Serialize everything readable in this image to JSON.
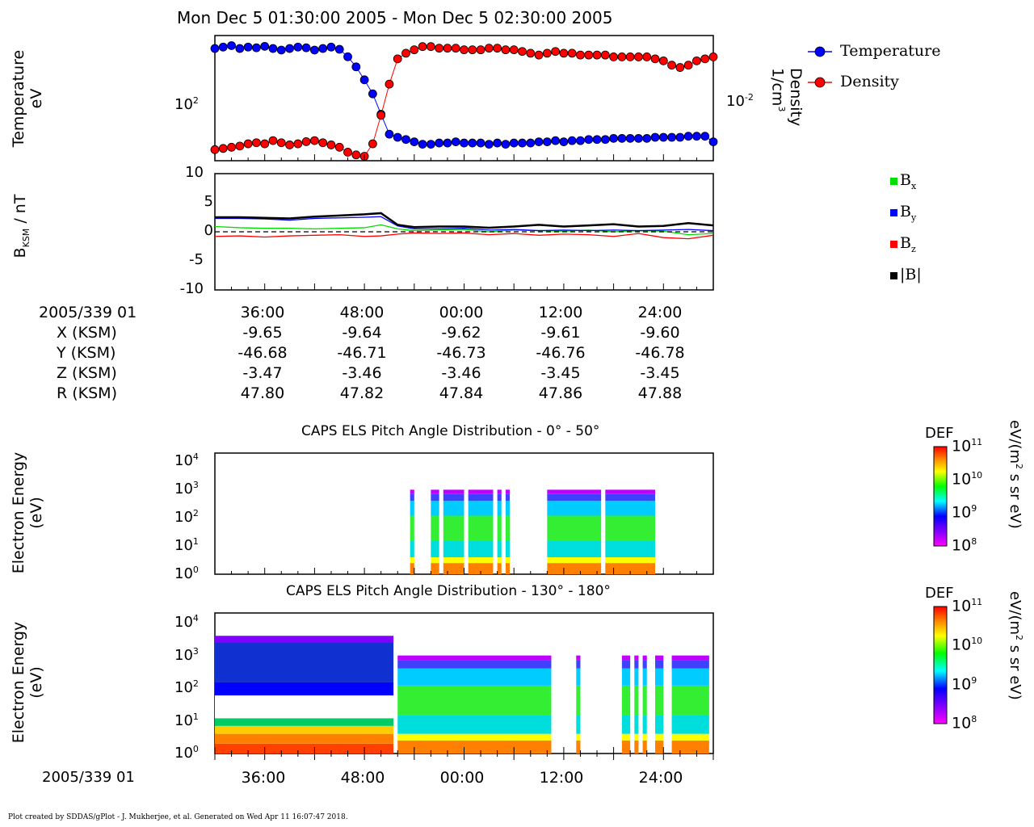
{
  "header": {
    "title": "Mon Dec 5 01:30:00 2005 - Mon Dec 5 02:30:00 2005"
  },
  "panel1": {
    "ylabel_line1": "Temperature",
    "ylabel_line2": "eV",
    "y2label_line1": "Density",
    "y2label_line2": "1/cm",
    "y2label_sup": "3",
    "ytick": "10",
    "ytick_sup": "2",
    "y2tick": "10",
    "y2tick_sup": "-2",
    "legend": [
      {
        "label": "Temperature",
        "color": "#0000ff"
      },
      {
        "label": "Density",
        "color": "#ff0000"
      }
    ]
  },
  "panel2": {
    "ylabel_main": "B",
    "ylabel_sub": "KSM",
    "ylabel_tail": " / nT",
    "yticks": [
      "10",
      "5",
      "0",
      "-5",
      "-10"
    ],
    "legend": [
      {
        "sym": "B",
        "sub": "x",
        "color": "#00dd00"
      },
      {
        "sym": "B",
        "sub": "y",
        "color": "#0000ff"
      },
      {
        "sym": "B",
        "sub": "z",
        "color": "#ff0000"
      },
      {
        "sym": "|B|",
        "sub": "",
        "color": "#000000"
      }
    ]
  },
  "ephemeris": {
    "rows": [
      {
        "label": "2005/339 01",
        "values": [
          "36:00",
          "48:00",
          "00:00",
          "12:00",
          "24:00"
        ]
      },
      {
        "label": "X (KSM)",
        "values": [
          "-9.65",
          "-9.64",
          "-9.62",
          "-9.61",
          "-9.60"
        ]
      },
      {
        "label": "Y (KSM)",
        "values": [
          "-46.68",
          "-46.71",
          "-46.73",
          "-46.76",
          "-46.78"
        ]
      },
      {
        "label": "Z (KSM)",
        "values": [
          "-3.47",
          "-3.46",
          "-3.46",
          "-3.45",
          "-3.45"
        ]
      },
      {
        "label": "R (KSM)",
        "values": [
          "47.80",
          "47.82",
          "47.84",
          "47.86",
          "47.88"
        ]
      }
    ]
  },
  "spec1": {
    "title": "CAPS ELS Pitch Angle Distribution - 0° - 50°",
    "ylabel_line1": "Electron Energy",
    "ylabel_line2": "(eV)",
    "yticks": [
      {
        "base": "10",
        "exp": "4"
      },
      {
        "base": "10",
        "exp": "3"
      },
      {
        "base": "10",
        "exp": "2"
      },
      {
        "base": "10",
        "exp": "1"
      },
      {
        "base": "10",
        "exp": "0"
      }
    ]
  },
  "spec2": {
    "title": "CAPS ELS Pitch Angle Distribution - 130° - 180°",
    "ylabel_line1": "Electron Energy",
    "ylabel_line2": "(eV)",
    "yticks": [
      {
        "base": "10",
        "exp": "4"
      },
      {
        "base": "10",
        "exp": "3"
      },
      {
        "base": "10",
        "exp": "2"
      },
      {
        "base": "10",
        "exp": "1"
      },
      {
        "base": "10",
        "exp": "0"
      }
    ]
  },
  "colorbar": {
    "label": "DEF",
    "unit_pre": "eV/(m",
    "unit_sup": "2",
    "unit_post": " s sr eV)",
    "ticks": [
      {
        "base": "10",
        "exp": "11"
      },
      {
        "base": "10",
        "exp": "10"
      },
      {
        "base": "10",
        "exp": "9"
      },
      {
        "base": "10",
        "exp": "8"
      }
    ]
  },
  "bottom_axis": {
    "label": "2005/339 01",
    "ticks": [
      "36:00",
      "48:00",
      "00:00",
      "12:00",
      "24:00"
    ]
  },
  "footer": {
    "credit": "Plot created by SDDAS/gPlot - J. Mukherjee, et al.  Generated on Wed Apr 11 16:07:47 2018."
  },
  "chart_data": [
    {
      "type": "line",
      "title": "Mon Dec 5 01:30:00 2005 - Mon Dec 5 02:30:00 2005",
      "xlabel": "2005/339 01",
      "x_range": [
        "01:30",
        "02:30"
      ],
      "x_ticks": [
        "36:00",
        "48:00",
        "00:00",
        "12:00",
        "24:00"
      ],
      "ylabel": "Temperature eV",
      "y2label": "Density 1/cm3",
      "yscale": "log",
      "series": [
        {
          "name": "Temperature",
          "axis": "left",
          "x_min": [
            0,
            1,
            2,
            3,
            4,
            5,
            6,
            7,
            8,
            9,
            10,
            11,
            12,
            13,
            14,
            15,
            16,
            17,
            18,
            19,
            20,
            21,
            22,
            23,
            24,
            25,
            26,
            27,
            28,
            29,
            30,
            31,
            32,
            33,
            34,
            35,
            36,
            37,
            38,
            39,
            40,
            41,
            42,
            43,
            44,
            45,
            46,
            47,
            48,
            49,
            50,
            51,
            52,
            53,
            54,
            55,
            56,
            57,
            58,
            59,
            60
          ],
          "values": [
            300,
            310,
            320,
            300,
            310,
            305,
            315,
            300,
            290,
            300,
            310,
            305,
            290,
            300,
            310,
            295,
            250,
            200,
            150,
            110,
            70,
            45,
            42,
            40,
            38,
            36,
            36,
            37,
            37,
            38,
            37,
            37,
            37,
            36,
            37,
            36,
            37,
            37,
            37,
            38,
            38,
            39,
            38,
            39,
            39,
            40,
            40,
            40,
            41,
            41,
            41,
            41,
            41,
            42,
            42,
            42,
            42,
            43,
            43,
            43,
            38
          ]
        },
        {
          "name": "Density",
          "axis": "right",
          "x_min": [
            0,
            1,
            2,
            3,
            4,
            5,
            6,
            7,
            8,
            9,
            10,
            11,
            12,
            13,
            14,
            15,
            16,
            17,
            18,
            19,
            20,
            21,
            22,
            23,
            24,
            25,
            26,
            27,
            28,
            29,
            30,
            31,
            32,
            33,
            34,
            35,
            36,
            37,
            38,
            39,
            40,
            41,
            42,
            43,
            44,
            45,
            46,
            47,
            48,
            49,
            50,
            51,
            52,
            53,
            54,
            55,
            56,
            57,
            58,
            59,
            60
          ],
          "values": [
            0.004,
            0.0041,
            0.0042,
            0.0043,
            0.0045,
            0.0046,
            0.0045,
            0.0048,
            0.0046,
            0.0044,
            0.0045,
            0.0047,
            0.0048,
            0.0046,
            0.0044,
            0.0042,
            0.0038,
            0.0036,
            0.0035,
            0.0045,
            0.008,
            0.015,
            0.025,
            0.028,
            0.03,
            0.032,
            0.032,
            0.031,
            0.031,
            0.031,
            0.03,
            0.03,
            0.03,
            0.031,
            0.031,
            0.03,
            0.03,
            0.029,
            0.028,
            0.027,
            0.028,
            0.029,
            0.028,
            0.028,
            0.027,
            0.027,
            0.027,
            0.027,
            0.026,
            0.026,
            0.026,
            0.026,
            0.026,
            0.025,
            0.024,
            0.022,
            0.021,
            0.022,
            0.024,
            0.025,
            0.026
          ]
        }
      ]
    },
    {
      "type": "line",
      "ylabel": "BKSM / nT",
      "ylim": [
        -10,
        10
      ],
      "series": [
        {
          "name": "Bx",
          "x_min": [
            0,
            3,
            6,
            9,
            12,
            15,
            18,
            20,
            22,
            24,
            27,
            30,
            33,
            36,
            39,
            42,
            45,
            48,
            51,
            54,
            57,
            60
          ],
          "values": [
            0.9,
            0.7,
            0.6,
            0.6,
            0.5,
            0.6,
            0.7,
            1.2,
            0.5,
            0.2,
            0.3,
            0.4,
            0.0,
            0.3,
            0.2,
            0.1,
            0.3,
            0.0,
            0.2,
            0.1,
            -0.5,
            -0.3
          ]
        },
        {
          "name": "By",
          "x_min": [
            0,
            3,
            6,
            9,
            12,
            15,
            18,
            20,
            22,
            24,
            27,
            30,
            33,
            36,
            39,
            42,
            45,
            48,
            51,
            54,
            57,
            60
          ],
          "values": [
            2.3,
            2.3,
            2.2,
            2.0,
            2.3,
            2.4,
            2.5,
            2.6,
            1.0,
            0.5,
            0.5,
            0.6,
            0.3,
            0.4,
            0.2,
            0.3,
            0.2,
            0.3,
            0.2,
            0.3,
            0.4,
            0.2
          ]
        },
        {
          "name": "Bz",
          "x_min": [
            0,
            3,
            6,
            9,
            12,
            15,
            18,
            20,
            22,
            24,
            27,
            30,
            33,
            36,
            39,
            42,
            45,
            48,
            51,
            54,
            57,
            60
          ],
          "values": [
            -0.8,
            -0.7,
            -0.9,
            -0.7,
            -0.6,
            -0.5,
            -0.8,
            -0.7,
            -0.4,
            -0.2,
            -0.3,
            -0.2,
            -0.5,
            -0.3,
            -0.6,
            -0.4,
            -0.5,
            -0.8,
            -0.3,
            -1.0,
            -1.2,
            -0.6
          ]
        },
        {
          "name": "|B|",
          "x_min": [
            0,
            3,
            6,
            9,
            12,
            15,
            18,
            20,
            22,
            24,
            27,
            30,
            33,
            36,
            39,
            42,
            45,
            48,
            51,
            54,
            57,
            60
          ],
          "values": [
            2.5,
            2.5,
            2.4,
            2.3,
            2.6,
            2.8,
            3.0,
            3.2,
            1.2,
            0.8,
            0.9,
            0.9,
            0.7,
            0.9,
            1.2,
            0.9,
            1.1,
            1.3,
            0.9,
            1.0,
            1.5,
            1.1
          ]
        }
      ]
    },
    {
      "type": "heatmap",
      "title": "CAPS ELS Pitch Angle Distribution - 0° - 50°",
      "ylabel": "Electron Energy (eV)",
      "yscale": "log",
      "ylim": [
        1,
        20000
      ],
      "colorbar": {
        "label": "DEF",
        "unit": "eV/(m2 s sr eV)",
        "range": [
          100000000.0,
          100000000000.0
        ]
      },
      "data_segments_min": [
        [
          23.5,
          24.0
        ],
        [
          26.0,
          27.0
        ],
        [
          27.5,
          30.0
        ],
        [
          30.5,
          33.5
        ],
        [
          34.0,
          34.5
        ],
        [
          35.0,
          35.5
        ],
        [
          40.0,
          46.5
        ],
        [
          47.0,
          53.0
        ]
      ]
    },
    {
      "type": "heatmap",
      "title": "CAPS ELS Pitch Angle Distribution - 130° - 180°",
      "ylabel": "Electron Energy (eV)",
      "yscale": "log",
      "ylim": [
        1,
        20000
      ],
      "colorbar": {
        "label": "DEF",
        "unit": "eV/(m2 s sr eV)",
        "range": [
          100000000.0,
          100000000000.0
        ]
      },
      "data_segments_min": [
        [
          0,
          21.5
        ],
        [
          22.0,
          40.5
        ],
        [
          43.5,
          44.0
        ],
        [
          49.0,
          50.0
        ],
        [
          50.5,
          51.0
        ],
        [
          51.5,
          52.0
        ],
        [
          53.0,
          54.0
        ],
        [
          55.0,
          59.5
        ]
      ]
    }
  ]
}
